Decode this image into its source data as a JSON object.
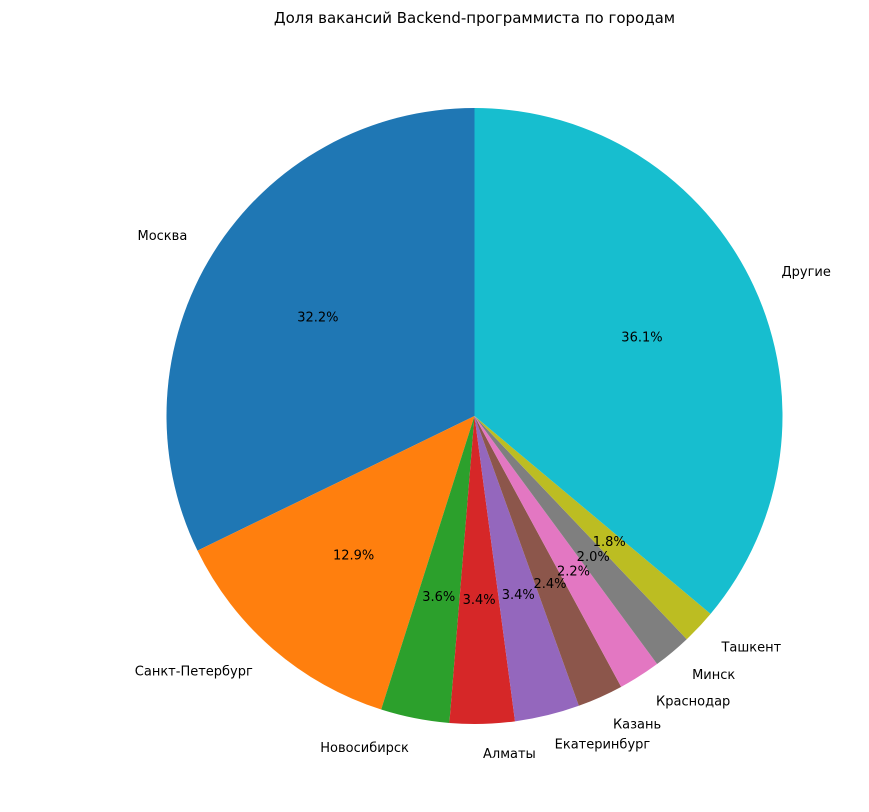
{
  "chart_data": {
    "type": "pie",
    "title": "Доля вакансий Backend-программиста по городам",
    "start_angle_deg": 90,
    "direction": "counterclockwise",
    "slices": [
      {
        "label": "Москва",
        "value": 32.2,
        "pct_label": "32.2%",
        "color": "#1f77b4"
      },
      {
        "label": "Санкт-Петербург",
        "value": 12.9,
        "pct_label": "12.9%",
        "color": "#ff7f0e"
      },
      {
        "label": "Новосибирск",
        "value": 3.6,
        "pct_label": "3.6%",
        "color": "#2ca02c"
      },
      {
        "label": "Алматы",
        "value": 3.4,
        "pct_label": "3.4%",
        "color": "#d62728"
      },
      {
        "label": "Екатеринбург",
        "value": 3.4,
        "pct_label": "3.4%",
        "color": "#9467bd"
      },
      {
        "label": "Казань",
        "value": 2.4,
        "pct_label": "2.4%",
        "color": "#8c564b"
      },
      {
        "label": "Краснодар",
        "value": 2.2,
        "pct_label": "2.2%",
        "color": "#e377c2"
      },
      {
        "label": "Минск",
        "value": 2.0,
        "pct_label": "2.0%",
        "color": "#7f7f7f"
      },
      {
        "label": "Ташкент",
        "value": 1.8,
        "pct_label": "1.8%",
        "color": "#bcbd22"
      },
      {
        "label": "Другие",
        "value": 36.1,
        "pct_label": "36.1%",
        "color": "#17becf"
      }
    ]
  }
}
